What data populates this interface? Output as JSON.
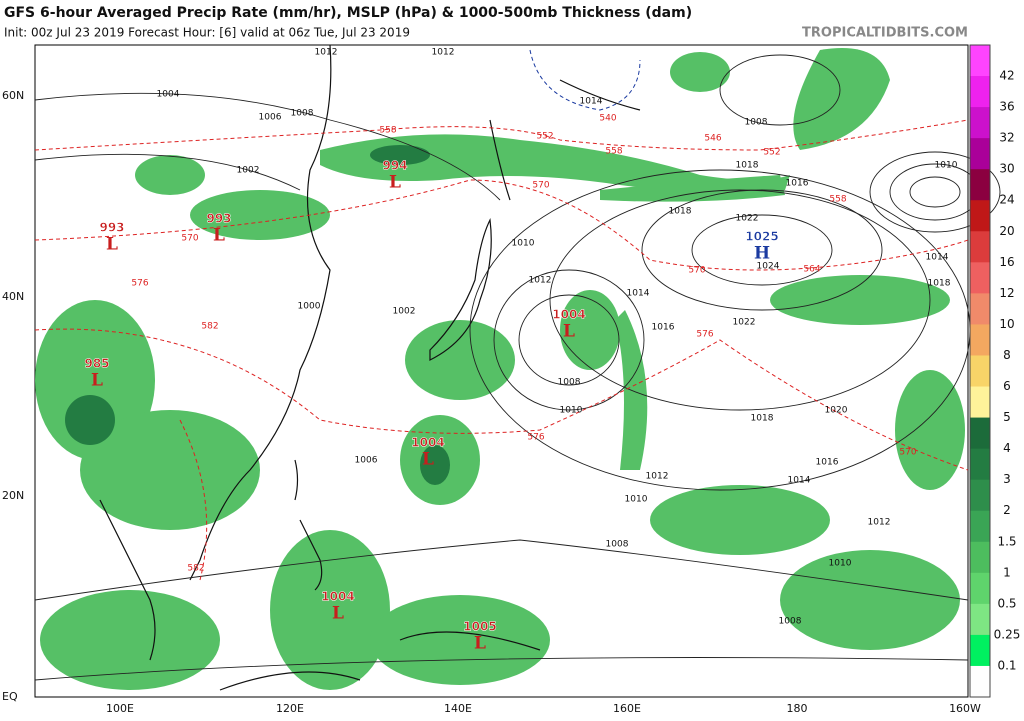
{
  "header": {
    "title": "GFS 6-hour Averaged Precip Rate (mm/hr), MSLP (hPa) & 1000-500mb Thickness (dam)",
    "subtitle": "Init: 00z Jul 23 2019   Forecast Hour: [6]   valid at 06z Tue, Jul 23 2019",
    "watermark": "TROPICALTIDBITS.COM"
  },
  "map": {
    "lat_labels": [
      "60N",
      "40N",
      "20N",
      "EQ"
    ],
    "lon_labels": [
      "100E",
      "120E",
      "140E",
      "160E",
      "180",
      "160W"
    ],
    "pressure_centers": [
      {
        "value": "993",
        "symbol": "L"
      },
      {
        "value": "993",
        "symbol": "L"
      },
      {
        "value": "994",
        "symbol": "L"
      },
      {
        "value": "985",
        "symbol": "L"
      },
      {
        "value": "1004",
        "symbol": "L"
      },
      {
        "value": "1025",
        "symbol": "H"
      },
      {
        "value": "1004",
        "symbol": "L"
      },
      {
        "value": "1004",
        "symbol": "L"
      },
      {
        "value": "1005",
        "symbol": "L"
      }
    ],
    "isobar_labels": [
      "1012",
      "1004",
      "1006",
      "1008",
      "1002",
      "1010",
      "1012",
      "1014",
      "1016",
      "1018",
      "1022",
      "1024",
      "1022",
      "1020",
      "1018",
      "1016",
      "1014",
      "1012",
      "1010",
      "1008",
      "1006",
      "1008",
      "1010",
      "1002",
      "1000",
      "1008",
      "1010",
      "1012",
      "1014",
      "1018",
      "1010",
      "1016",
      "1018",
      "1008",
      "1012",
      "1014"
    ],
    "thickness_labels": [
      "558",
      "552",
      "546",
      "552",
      "558",
      "570",
      "570",
      "576",
      "576",
      "570",
      "564",
      "558",
      "582",
      "576",
      "570",
      "582",
      "540"
    ]
  },
  "colorbar": {
    "labels": [
      "42",
      "36",
      "32",
      "30",
      "24",
      "20",
      "16",
      "12",
      "10",
      "8",
      "6",
      "5",
      "4",
      "3",
      "2",
      "1.5",
      "1",
      "0.5",
      "0.25",
      "0.1"
    ],
    "colors": [
      "#ff44ff",
      "#ee22ee",
      "#cc11cc",
      "#aa0099",
      "#8b0040",
      "#c01818",
      "#dc3c3c",
      "#ee6060",
      "#f08a6a",
      "#f4a860",
      "#f8d468",
      "#fff39a",
      "#1c6b3a",
      "#237c42",
      "#2e8e4b",
      "#3aa555",
      "#4dbd5e",
      "#5fd46c",
      "#7ee683",
      "#00f060",
      "#ffffff"
    ]
  }
}
